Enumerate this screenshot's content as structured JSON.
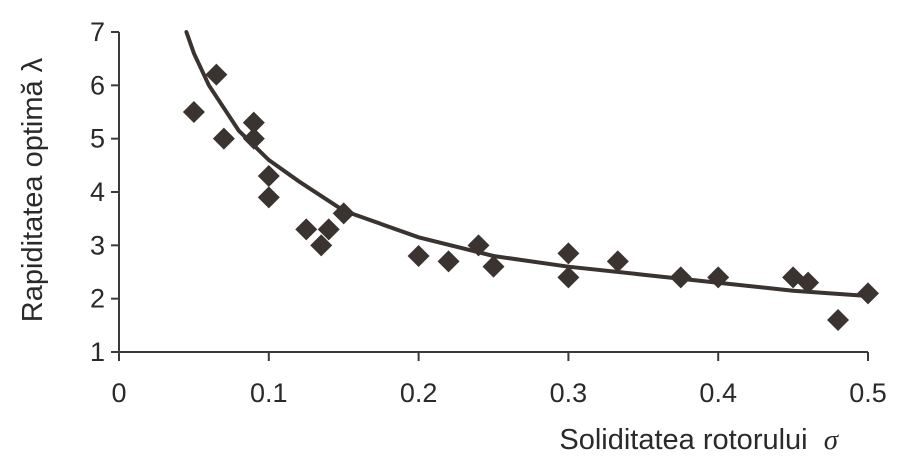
{
  "chart_data": {
    "type": "scatter",
    "title": "",
    "xlabel": "Soliditatea rotorului",
    "xlabel_symbol": "σ",
    "ylabel": "Rapiditatea optimă λ",
    "xlim": [
      0,
      0.5
    ],
    "ylim": [
      1,
      7
    ],
    "x_ticks": [
      "0",
      "0.1",
      "0.2",
      "0.3",
      "0.4",
      "0.5"
    ],
    "y_ticks": [
      "1",
      "2",
      "3",
      "4",
      "5",
      "6",
      "7"
    ],
    "grid": false,
    "legend": "none",
    "marker": "diamond",
    "color": "#3a3330",
    "series": [
      {
        "points": [
          {
            "x": 0.05,
            "y": 5.5
          },
          {
            "x": 0.065,
            "y": 6.2
          },
          {
            "x": 0.07,
            "y": 5.0
          },
          {
            "x": 0.09,
            "y": 5.3
          },
          {
            "x": 0.09,
            "y": 5.0
          },
          {
            "x": 0.1,
            "y": 4.3
          },
          {
            "x": 0.1,
            "y": 3.9
          },
          {
            "x": 0.125,
            "y": 3.3
          },
          {
            "x": 0.135,
            "y": 3.0
          },
          {
            "x": 0.14,
            "y": 3.3
          },
          {
            "x": 0.15,
            "y": 3.6
          },
          {
            "x": 0.2,
            "y": 2.8
          },
          {
            "x": 0.22,
            "y": 2.7
          },
          {
            "x": 0.24,
            "y": 3.0
          },
          {
            "x": 0.25,
            "y": 2.6
          },
          {
            "x": 0.3,
            "y": 2.85
          },
          {
            "x": 0.3,
            "y": 2.4
          },
          {
            "x": 0.333,
            "y": 2.7
          },
          {
            "x": 0.375,
            "y": 2.4
          },
          {
            "x": 0.4,
            "y": 2.4
          },
          {
            "x": 0.45,
            "y": 2.4
          },
          {
            "x": 0.46,
            "y": 2.3
          },
          {
            "x": 0.48,
            "y": 1.6
          },
          {
            "x": 0.5,
            "y": 2.1
          }
        ]
      }
    ],
    "trendline": {
      "type": "power",
      "points": [
        {
          "x": 0.045,
          "y": 7.0
        },
        {
          "x": 0.05,
          "y": 6.6
        },
        {
          "x": 0.06,
          "y": 6.0
        },
        {
          "x": 0.08,
          "y": 5.15
        },
        {
          "x": 0.1,
          "y": 4.6
        },
        {
          "x": 0.12,
          "y": 4.2
        },
        {
          "x": 0.15,
          "y": 3.65
        },
        {
          "x": 0.2,
          "y": 3.15
        },
        {
          "x": 0.25,
          "y": 2.8
        },
        {
          "x": 0.3,
          "y": 2.6
        },
        {
          "x": 0.35,
          "y": 2.45
        },
        {
          "x": 0.4,
          "y": 2.3
        },
        {
          "x": 0.45,
          "y": 2.15
        },
        {
          "x": 0.5,
          "y": 2.05
        }
      ]
    }
  }
}
